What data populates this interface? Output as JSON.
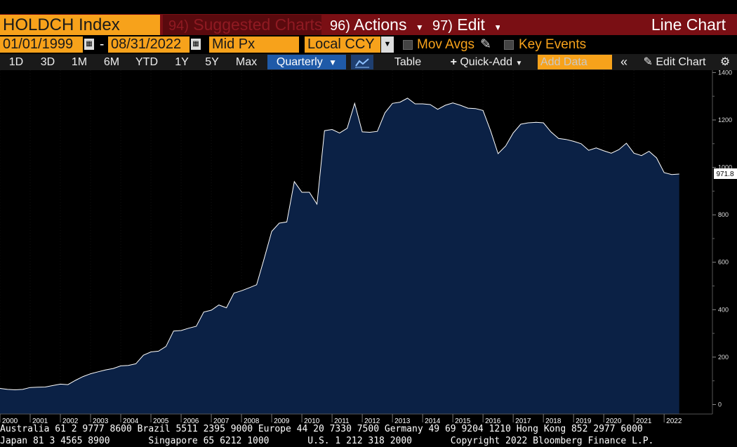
{
  "header": {
    "ticker": "HOLDCH Index",
    "suggested": {
      "num": "94)",
      "label": "Suggested Charts"
    },
    "actions": {
      "num": "96)",
      "label": "Actions"
    },
    "edit": {
      "num": "97)",
      "label": "Edit"
    },
    "chart_type": "Line Chart"
  },
  "controls": {
    "start_date": "01/01/1999",
    "date_sep": "-",
    "end_date": "08/31/2022",
    "field": "Mid Px",
    "currency": "Local CCY",
    "mov_avgs": "Mov Avgs",
    "key_events": "Key Events"
  },
  "toolbar": {
    "ranges": [
      "1D",
      "3D",
      "1M",
      "6M",
      "YTD",
      "1Y",
      "5Y",
      "Max"
    ],
    "period": "Quarterly",
    "table": "Table",
    "quick_add": "Quick-Add",
    "add_data_placeholder": "Add Data",
    "edit_chart": "Edit Chart"
  },
  "colors": {
    "accent": "#f7a21b",
    "header_red": "#7a0f14",
    "area_fill": "#0b2145",
    "line": "#ffffff",
    "active_button": "#1f5aa8"
  },
  "chart_data": {
    "type": "area",
    "last_value_label": "971.8",
    "ylim": [
      -40,
      1410
    ],
    "yticks": [
      0,
      200,
      400,
      600,
      800,
      1000,
      1200,
      1400
    ],
    "xlim": [
      2000.0,
      2023.6
    ],
    "xticks": [
      "2000",
      "2001",
      "2002",
      "2003",
      "2004",
      "2005",
      "2006",
      "2007",
      "2008",
      "2009",
      "2010",
      "2011",
      "2012",
      "2013",
      "2014",
      "2015",
      "2016",
      "2017",
      "2018",
      "2019",
      "2020",
      "2021",
      "2022"
    ],
    "grid": true,
    "series": [
      {
        "x": [
          2000.0,
          2000.25,
          2000.5,
          2000.75,
          2001.0,
          2001.25,
          2001.5,
          2001.75,
          2002.0,
          2002.25,
          2002.5,
          2002.75,
          2003.0,
          2003.25,
          2003.5,
          2003.75,
          2004.0,
          2004.25,
          2004.5,
          2004.75,
          2005.0,
          2005.25,
          2005.5,
          2005.75,
          2006.0,
          2006.25,
          2006.5,
          2006.75,
          2007.0,
          2007.25,
          2007.5,
          2007.75,
          2008.0,
          2008.25,
          2008.5,
          2008.75,
          2009.0,
          2009.25,
          2009.5,
          2009.75,
          2010.0,
          2010.25,
          2010.5,
          2010.75,
          2011.0,
          2011.25,
          2011.5,
          2011.75,
          2012.0,
          2012.25,
          2012.5,
          2012.75,
          2013.0,
          2013.25,
          2013.5,
          2013.75,
          2014.0,
          2014.25,
          2014.5,
          2014.75,
          2015.0,
          2015.25,
          2015.5,
          2015.75,
          2016.0,
          2016.25,
          2016.5,
          2016.75,
          2017.0,
          2017.25,
          2017.5,
          2017.75,
          2018.0,
          2018.25,
          2018.5,
          2018.75,
          2019.0,
          2019.25,
          2019.5,
          2019.75,
          2020.0,
          2020.25,
          2020.5,
          2020.75,
          2021.0,
          2021.25,
          2021.5,
          2021.75,
          2022.0,
          2022.25,
          2022.5
        ],
        "values": [
          68,
          64,
          62,
          64,
          72,
          73,
          74,
          80,
          86,
          84,
          102,
          118,
          130,
          138,
          146,
          152,
          163,
          165,
          172,
          208,
          222,
          225,
          245,
          310,
          312,
          322,
          330,
          390,
          398,
          420,
          408,
          470,
          480,
          492,
          505,
          615,
          730,
          765,
          770,
          940,
          895,
          895,
          845,
          1155,
          1160,
          1145,
          1165,
          1270,
          1150,
          1148,
          1152,
          1230,
          1270,
          1275,
          1292,
          1268,
          1268,
          1265,
          1245,
          1262,
          1272,
          1262,
          1250,
          1248,
          1240,
          1155,
          1058,
          1090,
          1145,
          1182,
          1188,
          1190,
          1188,
          1150,
          1122,
          1118,
          1110,
          1100,
          1072,
          1082,
          1070,
          1060,
          1075,
          1102,
          1060,
          1050,
          1068,
          1040,
          978,
          970,
          972
        ]
      }
    ]
  },
  "footer": {
    "line1": "Australia 61 2 9777 8600 Brazil 5511 2395 9000 Europe 44 20 7330 7500 Germany 49 69 9204 1210 Hong Kong 852 2977 6000",
    "line2": "Japan 81 3 4565 8900       Singapore 65 6212 1000       U.S. 1 212 318 2000       Copyright 2022 Bloomberg Finance L.P."
  }
}
